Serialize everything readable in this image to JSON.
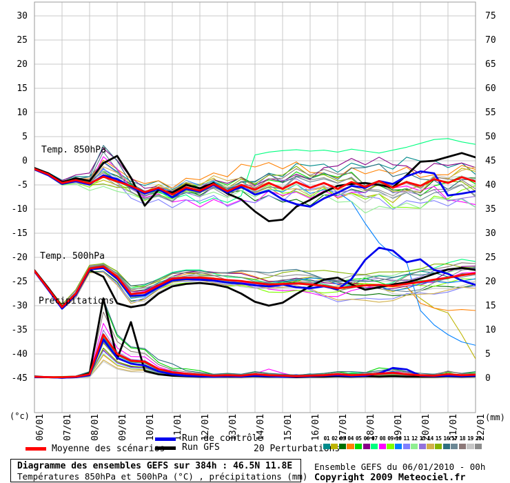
{
  "legend": {
    "mean_label": "Moyenne des scénarios",
    "control_label": "Run de contrôle",
    "gfs_label": "Run GFS",
    "perturbations_label": "20 Perturbations",
    "mean_color": "#FF0000",
    "control_color": "#0000EE",
    "gfs_color": "#000000"
  },
  "footer": {
    "title": "Diagramme des ensembles GEFS sur 384h : 46.5N 11.8E",
    "subtitle": "Températures 850hPa et 500hPa (°C) , précipitations (mm)",
    "run_info": "Ensemble GEFS du 06/01/2010 - 00h",
    "copyright": "Copyright 2009 Meteociel.fr"
  },
  "chart_data": {
    "type": "line",
    "title": "Diagramme des ensembles GEFS sur 384h : 46.5N 11.8E",
    "x_step_days": 0.5,
    "x_tick_labels": [
      "06/01",
      "07/01",
      "08/01",
      "09/01",
      "10/01",
      "11/01",
      "12/01",
      "13/01",
      "14/01",
      "15/01",
      "16/01",
      "17/01",
      "18/01",
      "19/01",
      "20/01",
      "21/01",
      "22/01"
    ],
    "y_left": {
      "label": "(°c)",
      "ticks": [
        30,
        25,
        20,
        15,
        10,
        5,
        0,
        -5,
        -10,
        -15,
        -20,
        -25,
        -30,
        -35,
        -40,
        -45
      ],
      "min": -45,
      "max": 30
    },
    "y_right": {
      "label": "(mm)",
      "ticks": [
        75,
        70,
        65,
        60,
        55,
        50,
        45,
        40,
        35,
        30,
        25,
        20,
        15,
        10,
        5,
        0
      ],
      "min": 0,
      "max": 75
    },
    "grid": true,
    "groups": {
      "t850": {
        "label": "Temp. 850hPa",
        "mean": [
          -1.7,
          -2.8,
          -4.6,
          -4.0,
          -4.7,
          -3.3,
          -4.3,
          -5.2,
          -6.5,
          -5.6,
          -7.0,
          -5.5,
          -6.2,
          -4.8,
          -6.3,
          -5.0,
          -6.0,
          -4.6,
          -5.8,
          -4.4,
          -5.6,
          -4.6,
          -5.8,
          -4.4,
          -5.4,
          -4.2,
          -5.6,
          -4.4,
          -5.2,
          -3.8,
          -4.6,
          -3.4,
          -4.3
        ],
        "control": [
          -1.8,
          -3.0,
          -4.8,
          -4.2,
          -4.9,
          -3.0,
          -3.8,
          -5.4,
          -6.8,
          -5.8,
          -7.6,
          -5.8,
          -6.4,
          -5.0,
          -6.6,
          -5.4,
          -7.0,
          -6.2,
          -8.0,
          -9.0,
          -9.5,
          -7.8,
          -6.6,
          -5.2,
          -5.6,
          -4.2,
          -4.8,
          -3.2,
          -2.2,
          -2.6,
          -7.2,
          -6.8,
          -6.3
        ],
        "gfs": [
          -1.5,
          -2.6,
          -4.4,
          -3.6,
          -4.2,
          -0.5,
          1.0,
          -3.5,
          -9.3,
          -6.0,
          -6.6,
          -5.0,
          -5.7,
          -4.6,
          -6.8,
          -8.0,
          -10.5,
          -12.5,
          -12.2,
          -9.5,
          -8.1,
          -6.5,
          -5.2,
          -4.8,
          -4.6,
          -5.0,
          -5.5,
          -3.0,
          -0.2,
          0.0,
          0.8,
          1.6,
          0.7
        ]
      },
      "t500": {
        "label": "Temp. 500hPa",
        "mean": [
          -22.8,
          -26.5,
          -30.3,
          -27.5,
          -22.3,
          -21.9,
          -24.0,
          -27.6,
          -27.3,
          -25.8,
          -24.4,
          -24.2,
          -24.2,
          -24.4,
          -24.7,
          -24.9,
          -25.3,
          -25.6,
          -25.5,
          -25.4,
          -25.6,
          -25.9,
          -26.4,
          -26.1,
          -25.8,
          -25.7,
          -25.9,
          -25.5,
          -25.1,
          -24.6,
          -24.2,
          -23.7,
          -23.3
        ],
        "control": [
          -22.9,
          -26.7,
          -30.6,
          -27.8,
          -22.5,
          -22.2,
          -24.4,
          -28.0,
          -27.8,
          -26.2,
          -24.8,
          -24.5,
          -24.6,
          -24.8,
          -25.2,
          -25.4,
          -25.8,
          -26.0,
          -25.6,
          -26.2,
          -26.4,
          -26.0,
          -26.6,
          -24.5,
          -20.5,
          -18.0,
          -18.6,
          -21.0,
          -20.4,
          -22.6,
          -23.4,
          -24.8,
          -25.7
        ],
        "gfs": [
          -22.7,
          -26.3,
          -30.2,
          -27.7,
          -22.6,
          -24.0,
          -29.5,
          -30.3,
          -29.8,
          -27.5,
          -26.0,
          -25.5,
          -25.3,
          -25.6,
          -26.2,
          -27.5,
          -29.2,
          -30.0,
          -29.4,
          -27.6,
          -26.0,
          -24.6,
          -24.2,
          -25.6,
          -26.7,
          -26.2,
          -25.6,
          -25.2,
          -24.4,
          -23.4,
          -22.5,
          -22.2,
          -22.6
        ]
      },
      "precip": {
        "label": "Précipitations",
        "mean": [
          0.3,
          0.2,
          0.2,
          0.3,
          0.8,
          9.0,
          5.0,
          3.6,
          3.4,
          1.9,
          1.2,
          0.9,
          0.7,
          0.5,
          0.6,
          0.5,
          0.8,
          0.6,
          0.5,
          0.4,
          0.5,
          0.6,
          0.8,
          0.6,
          0.7,
          0.9,
          1.1,
          0.8,
          0.6,
          0.5,
          0.8,
          0.6,
          0.7
        ],
        "control": [
          0.2,
          0.2,
          0.1,
          0.2,
          0.6,
          8.0,
          4.2,
          3.0,
          2.6,
          1.4,
          0.8,
          0.5,
          0.4,
          0.3,
          0.4,
          0.3,
          0.5,
          0.4,
          0.3,
          0.3,
          0.4,
          0.5,
          0.6,
          0.4,
          0.5,
          1.0,
          2.1,
          1.8,
          0.5,
          0.4,
          0.5,
          0.4,
          0.5
        ],
        "gfs": [
          0.2,
          0.2,
          0.1,
          0.2,
          1.0,
          16.5,
          4.0,
          11.6,
          1.5,
          0.8,
          0.5,
          0.4,
          0.3,
          0.3,
          0.3,
          0.3,
          0.4,
          0.3,
          0.3,
          0.2,
          0.3,
          0.3,
          0.4,
          0.3,
          0.4,
          0.3,
          0.4,
          0.3,
          0.3,
          0.3,
          0.4,
          0.3,
          0.4
        ]
      }
    },
    "members": [
      {
        "id": "01",
        "color": "#008B8B"
      },
      {
        "id": "02",
        "color": "#BDB400"
      },
      {
        "id": "03",
        "color": "#007000"
      },
      {
        "id": "04",
        "color": "#FF8000"
      },
      {
        "id": "05",
        "color": "#00D800"
      },
      {
        "id": "06",
        "color": "#870087"
      },
      {
        "id": "07",
        "color": "#00FF7F"
      },
      {
        "id": "08",
        "color": "#FF00FF"
      },
      {
        "id": "09",
        "color": "#7FFF00"
      },
      {
        "id": "10",
        "color": "#0080FF"
      },
      {
        "id": "11",
        "color": "#8080FF"
      },
      {
        "id": "12",
        "color": "#8FEE90"
      },
      {
        "id": "13",
        "color": "#9370DB"
      },
      {
        "id": "14",
        "color": "#D2B04A"
      },
      {
        "id": "15",
        "color": "#86B300"
      },
      {
        "id": "16",
        "color": "#2F6F7F"
      },
      {
        "id": "17",
        "color": "#6C8895"
      },
      {
        "id": "18",
        "color": "#8C7878"
      },
      {
        "id": "19",
        "color": "#C6C6C6"
      },
      {
        "id": "20",
        "color": "#8C8C8C"
      }
    ],
    "member_sim": {
      "bump850": [
        2.2,
        -0.6,
        1.2,
        3.1,
        1.6,
        4.8,
        0.6,
        5.4,
        1.1,
        2.6,
        3.4,
        0.2,
        4.4,
        2.1,
        -0.8,
        6.2,
        6.6,
        1.4,
        2.3,
        0.9
      ],
      "t850": {
        "spread0": 0.4,
        "spread1": 4.2,
        "pow": 0.8,
        "noise": 0.9,
        "ramp0": 0.12,
        "ramp_days": 2.5
      },
      "t500": {
        "spread0": 0.3,
        "spread1": 3.0,
        "pow": 0.9,
        "noise": 0.8,
        "ramp0": 0.2,
        "ramp_days": 2.0
      },
      "precip": {
        "fmin": 0.35,
        "fspan": 1.5,
        "late_gain": 1.6
      }
    },
    "overrides": [
      {
        "plume": "t850",
        "member": "10",
        "start_index": 22,
        "values": [
          -6.5,
          -8.5,
          -13,
          -17,
          -19.5,
          -21,
          -31,
          -34,
          -36,
          -37.5,
          -38.2
        ]
      },
      {
        "plume": "t850",
        "member": "07",
        "start_index": 16,
        "values": [
          1.2,
          1.8,
          2.1,
          2.3,
          2.0,
          2.2,
          1.8,
          2.4,
          2.0,
          1.6,
          2.2,
          2.8,
          3.6,
          4.4,
          4.6,
          3.9,
          3.4
        ]
      },
      {
        "plume": "t500",
        "member": "02",
        "start_index": 28,
        "values": [
          -28.5,
          -30.5,
          -31.5,
          -36.0,
          -41.0
        ]
      },
      {
        "plume": "t500",
        "member": "04",
        "start_index": 28,
        "values": [
          -29.5,
          -30.5,
          -31.0,
          -30.8,
          -31.0
        ]
      }
    ]
  }
}
